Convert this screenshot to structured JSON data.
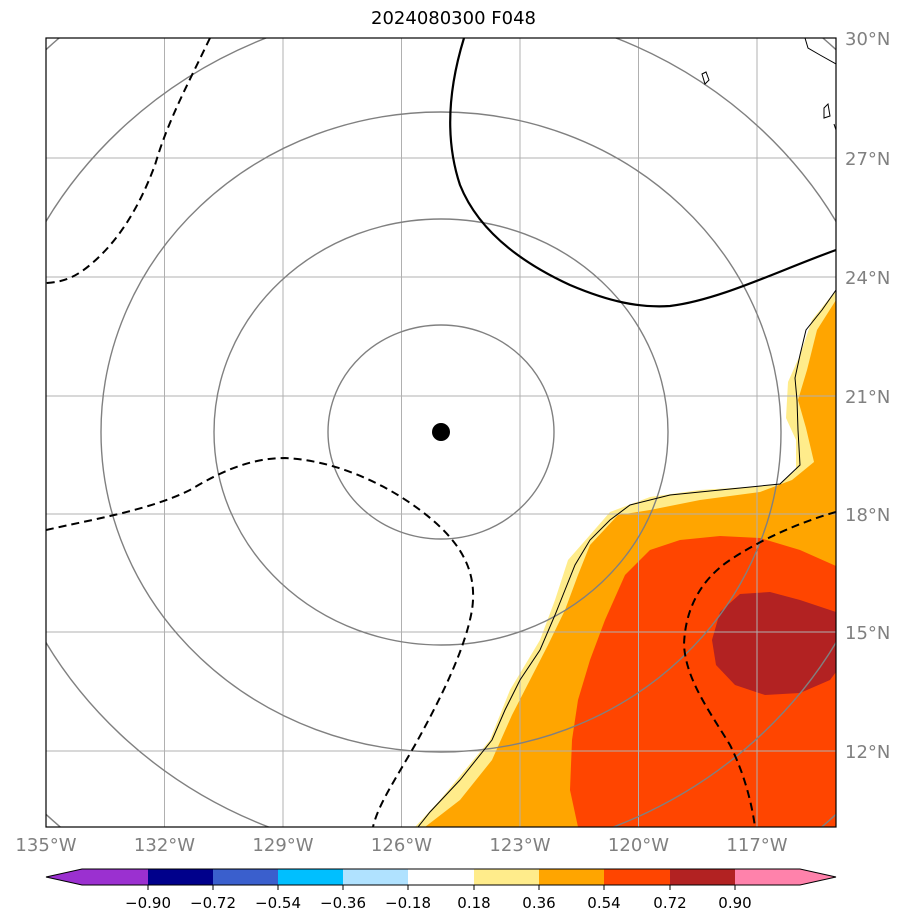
{
  "title": "2024080300 F048",
  "map": {
    "lon_labels": [
      "135°W",
      "132°W",
      "129°W",
      "126°W",
      "123°W",
      "120°W",
      "117°W"
    ],
    "lat_labels": [
      "30°N",
      "27°N",
      "24°N",
      "21°N",
      "18°N",
      "15°N",
      "12°N"
    ],
    "extent": {
      "lon_min": -135,
      "lon_max": -115,
      "lat_min": 10,
      "lat_max": 30
    },
    "center_marker": {
      "lon": -125,
      "lat": 20
    },
    "gridlines": true
  },
  "colorbar": {
    "ticks": [
      "−0.90",
      "−0.72",
      "−0.54",
      "−0.36",
      "−0.18",
      "0.18",
      "0.36",
      "0.54",
      "0.72",
      "0.90"
    ],
    "colors": [
      "#9b30d0",
      "#00008b",
      "#3a5fcd",
      "#00bfff",
      "#b0e2ff",
      "#ffffff",
      "#ffec8b",
      "#ffa500",
      "#ff4500",
      "#b22222",
      "#ff82ab"
    ],
    "extend": "both"
  },
  "fill_colors": {
    "level_018": "#ffec8b",
    "level_036": "#ffa500",
    "level_054": "#ff4500",
    "level_072": "#b22222"
  }
}
